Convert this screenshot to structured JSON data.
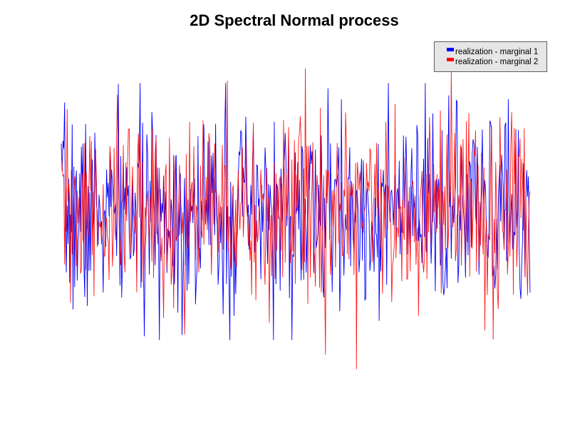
{
  "chart_data": {
    "type": "line",
    "title": "2D Spectral Normal process",
    "xlabel": "",
    "ylabel": "",
    "axes_visible": false,
    "grid": false,
    "legend_position": "top-right",
    "ylim": [
      -3.6,
      3.6
    ],
    "series": [
      {
        "name": "realization - marginal 1",
        "color": "#0000ff",
        "seed": 7,
        "n": 560,
        "std": 1.0,
        "peak_max": 2.7,
        "peak_min": -2.6
      },
      {
        "name": "realization - marginal 2",
        "color": "#ff0000",
        "seed": 31,
        "n": 560,
        "std": 1.0,
        "peak_max": 3.0,
        "peak_min": -3.2
      }
    ]
  }
}
